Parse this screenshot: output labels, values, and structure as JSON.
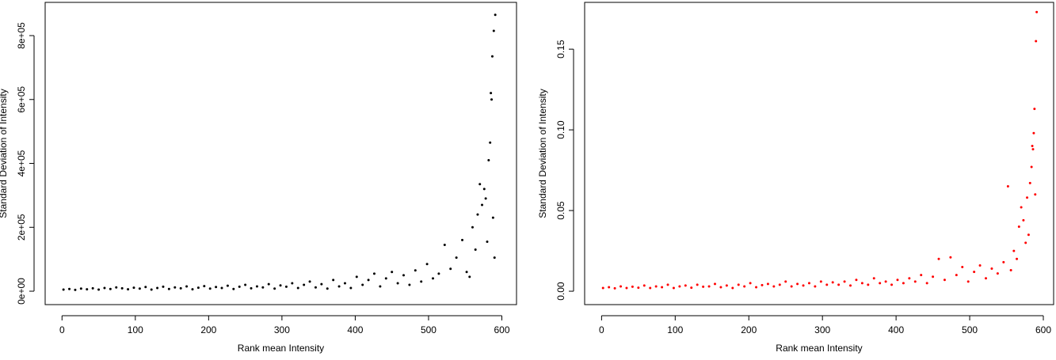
{
  "chart_data": [
    {
      "type": "scatter",
      "x_label": "Rank mean Intensity",
      "y_label": "Standard Deviation of Intensity",
      "color": "#000000",
      "xlim": [
        -23,
        620
      ],
      "ylim": [
        -42000,
        904000
      ],
      "xticks": [
        0,
        100,
        200,
        300,
        400,
        500,
        600
      ],
      "yticks": [
        {
          "value": 0,
          "label": "0e+00"
        },
        {
          "value": 200000,
          "label": "2e+05"
        },
        {
          "value": 400000,
          "label": "4e+05"
        },
        {
          "value": 600000,
          "label": "6e+05"
        },
        {
          "value": 800000,
          "label": "8e+05"
        }
      ],
      "x": [
        2,
        10,
        18,
        26,
        34,
        42,
        50,
        58,
        66,
        74,
        82,
        90,
        98,
        106,
        114,
        122,
        130,
        138,
        146,
        154,
        162,
        170,
        178,
        186,
        194,
        202,
        210,
        218,
        226,
        234,
        242,
        250,
        258,
        266,
        274,
        282,
        290,
        298,
        306,
        314,
        322,
        330,
        338,
        346,
        354,
        362,
        370,
        378,
        386,
        394,
        402,
        410,
        418,
        426,
        434,
        442,
        450,
        458,
        466,
        474,
        482,
        490,
        498,
        506,
        514,
        522,
        530,
        538,
        546,
        552,
        556,
        560,
        564,
        567,
        570,
        573,
        576,
        578,
        580,
        582,
        584,
        585,
        586,
        587,
        588,
        589,
        590,
        591
      ],
      "values": [
        5000,
        7000,
        4000,
        8000,
        6000,
        9000,
        5000,
        10000,
        7000,
        12000,
        9000,
        6000,
        11000,
        8000,
        13000,
        5000,
        10000,
        14000,
        7000,
        12000,
        9000,
        15000,
        6000,
        11000,
        16000,
        8000,
        13000,
        10000,
        17000,
        7000,
        14000,
        20000,
        9000,
        15000,
        12000,
        22000,
        8000,
        18000,
        14000,
        25000,
        10000,
        20000,
        30000,
        12000,
        22000,
        8000,
        35000,
        15000,
        25000,
        10000,
        45000,
        20000,
        35000,
        55000,
        15000,
        40000,
        60000,
        25000,
        50000,
        20000,
        65000,
        30000,
        85000,
        40000,
        55000,
        145000,
        70000,
        105000,
        160000,
        60000,
        45000,
        200000,
        130000,
        240000,
        335000,
        270000,
        320000,
        290000,
        155000,
        410000,
        465000,
        620000,
        600000,
        735000,
        230000,
        815000,
        105000,
        865000
      ]
    },
    {
      "type": "scatter",
      "x_label": "Rank mean Intensity",
      "y_label": "Standard Deviation of Intensity",
      "color": "#ff0000",
      "xlim": [
        -23,
        614
      ],
      "ylim": [
        -0.0083,
        0.179
      ],
      "xticks": [
        0,
        100,
        200,
        300,
        400,
        500,
        600
      ],
      "yticks": [
        {
          "value": 0,
          "label": "0.00"
        },
        0.05,
        {
          "value": 0.1,
          "label": "0.10"
        },
        0.15
      ],
      "x": [
        2,
        10,
        18,
        26,
        34,
        42,
        50,
        58,
        66,
        74,
        82,
        90,
        98,
        106,
        114,
        122,
        130,
        138,
        146,
        154,
        162,
        170,
        178,
        186,
        194,
        202,
        210,
        218,
        226,
        234,
        242,
        250,
        258,
        266,
        274,
        282,
        290,
        298,
        306,
        314,
        322,
        330,
        338,
        346,
        354,
        362,
        370,
        378,
        386,
        394,
        402,
        410,
        418,
        426,
        434,
        442,
        450,
        458,
        466,
        474,
        482,
        490,
        498,
        506,
        514,
        522,
        530,
        538,
        546,
        552,
        556,
        560,
        564,
        567,
        570,
        573,
        576,
        578,
        580,
        582,
        584,
        585,
        586,
        587,
        588,
        589,
        590,
        591
      ],
      "values": [
        0.002,
        0.0025,
        0.0018,
        0.003,
        0.002,
        0.0028,
        0.0022,
        0.0035,
        0.002,
        0.003,
        0.0025,
        0.004,
        0.002,
        0.003,
        0.0035,
        0.0022,
        0.004,
        0.0028,
        0.003,
        0.0045,
        0.0025,
        0.0035,
        0.002,
        0.004,
        0.003,
        0.005,
        0.0025,
        0.0038,
        0.0045,
        0.003,
        0.004,
        0.006,
        0.003,
        0.0045,
        0.0035,
        0.005,
        0.003,
        0.006,
        0.004,
        0.0055,
        0.004,
        0.006,
        0.0035,
        0.007,
        0.005,
        0.004,
        0.008,
        0.005,
        0.006,
        0.004,
        0.007,
        0.005,
        0.008,
        0.006,
        0.01,
        0.005,
        0.009,
        0.02,
        0.007,
        0.021,
        0.01,
        0.015,
        0.006,
        0.012,
        0.016,
        0.008,
        0.014,
        0.011,
        0.018,
        0.065,
        0.013,
        0.025,
        0.02,
        0.04,
        0.052,
        0.044,
        0.03,
        0.058,
        0.035,
        0.067,
        0.077,
        0.09,
        0.088,
        0.098,
        0.113,
        0.06,
        0.155,
        0.173
      ]
    }
  ]
}
